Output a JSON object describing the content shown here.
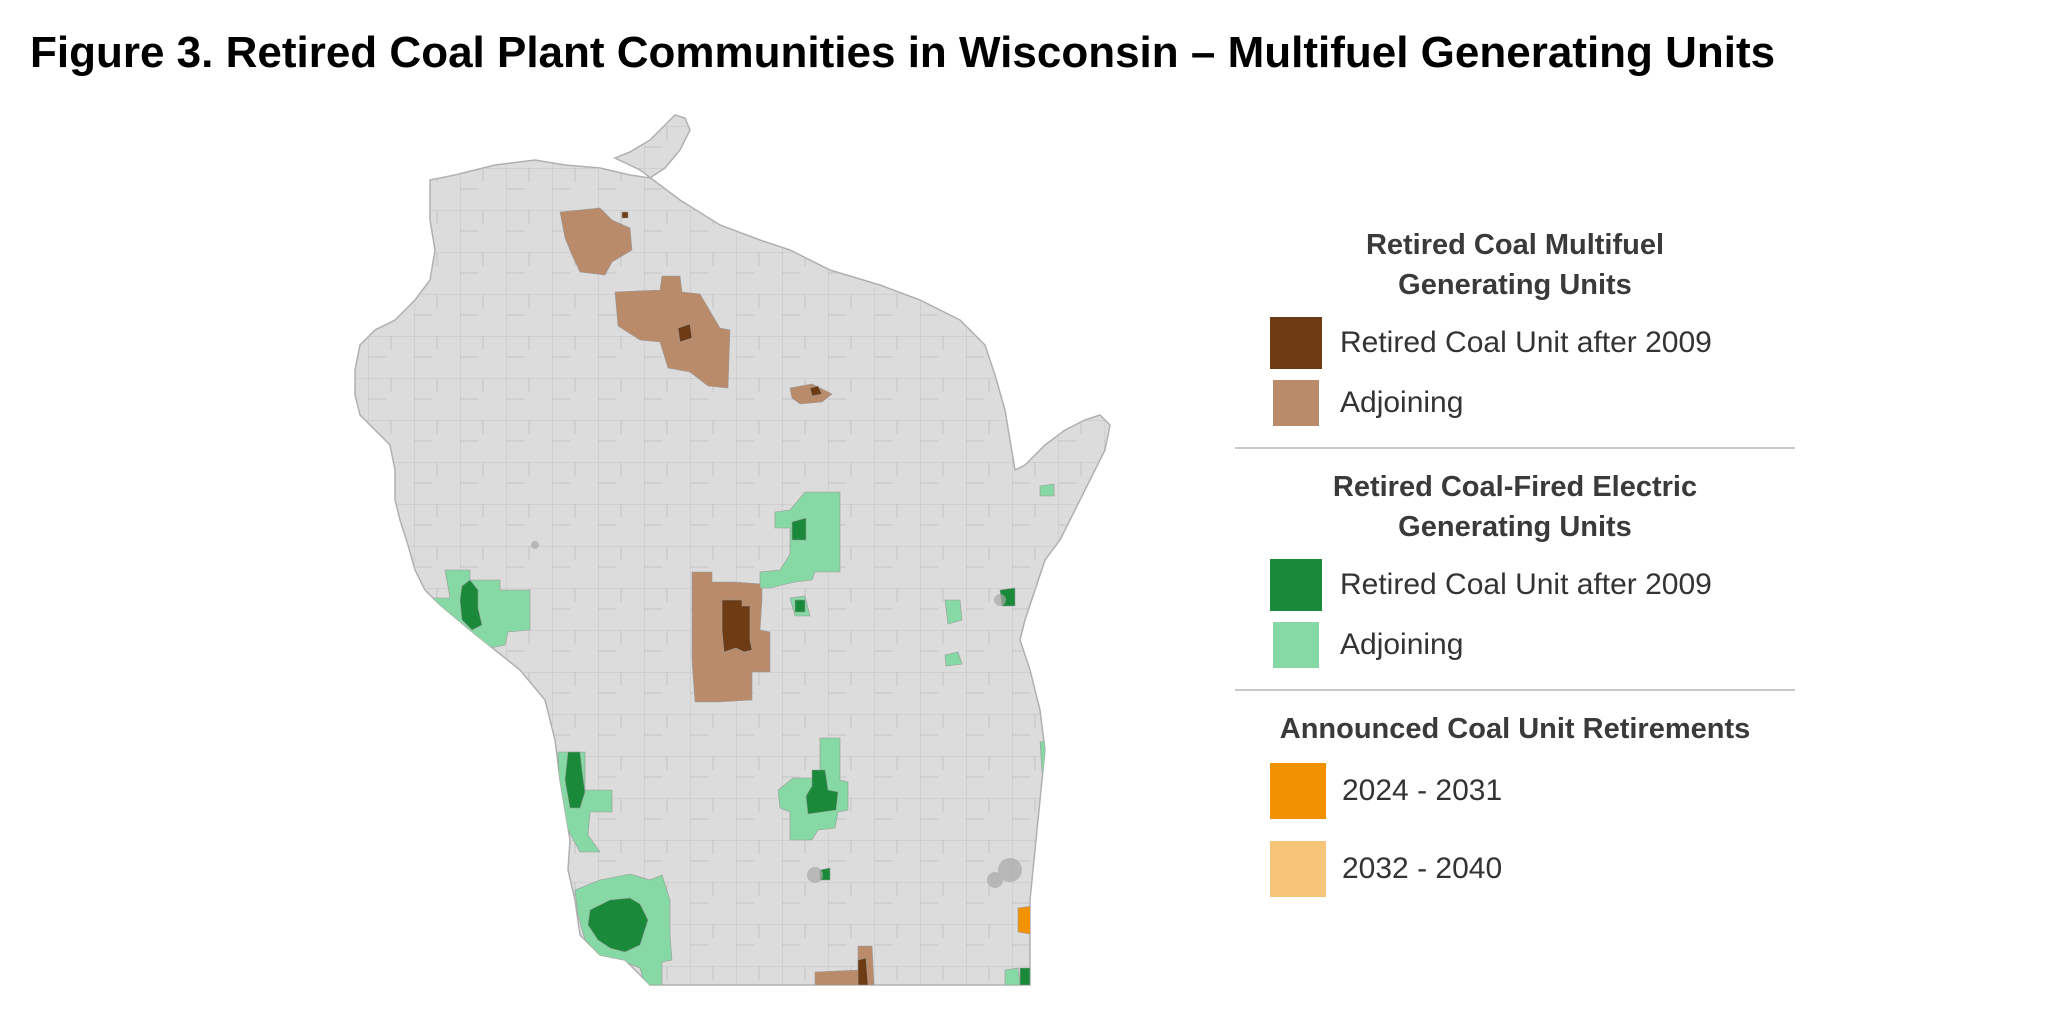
{
  "figure": {
    "title": "Figure 3. Retired Coal Plant Communities in Wisconsin – Multifuel Generating Units"
  },
  "colors": {
    "base_land": "#dcdcdc",
    "boundary": "#b8b8b8",
    "multifuel_retired": "#6e3c14",
    "multifuel_adjoining": "#b98b6b",
    "electric_retired": "#1a8a3a",
    "electric_adjoining": "#86d8a4",
    "announced_2024_2031": "#f39200",
    "announced_2032_2040": "#f6c57a"
  },
  "legend": {
    "multifuel": {
      "heading_line1": "Retired Coal Multifuel",
      "heading_line2": "Generating Units",
      "items": [
        {
          "label": "Retired Coal Unit after 2009",
          "color_key": "multifuel_retired"
        },
        {
          "label": "Adjoining",
          "color_key": "multifuel_adjoining"
        }
      ]
    },
    "electric": {
      "heading_line1": "Retired Coal-Fired Electric",
      "heading_line2": "Generating Units",
      "items": [
        {
          "label": "Retired Coal Unit after 2009",
          "color_key": "electric_retired"
        },
        {
          "label": "Adjoining",
          "color_key": "electric_adjoining"
        }
      ]
    },
    "announced": {
      "heading": "Announced Coal Unit Retirements",
      "items": [
        {
          "label": "2024 - 2031",
          "color_key": "announced_2024_2031"
        },
        {
          "label": "2032 - 2040",
          "color_key": "announced_2032_2040"
        }
      ]
    }
  }
}
